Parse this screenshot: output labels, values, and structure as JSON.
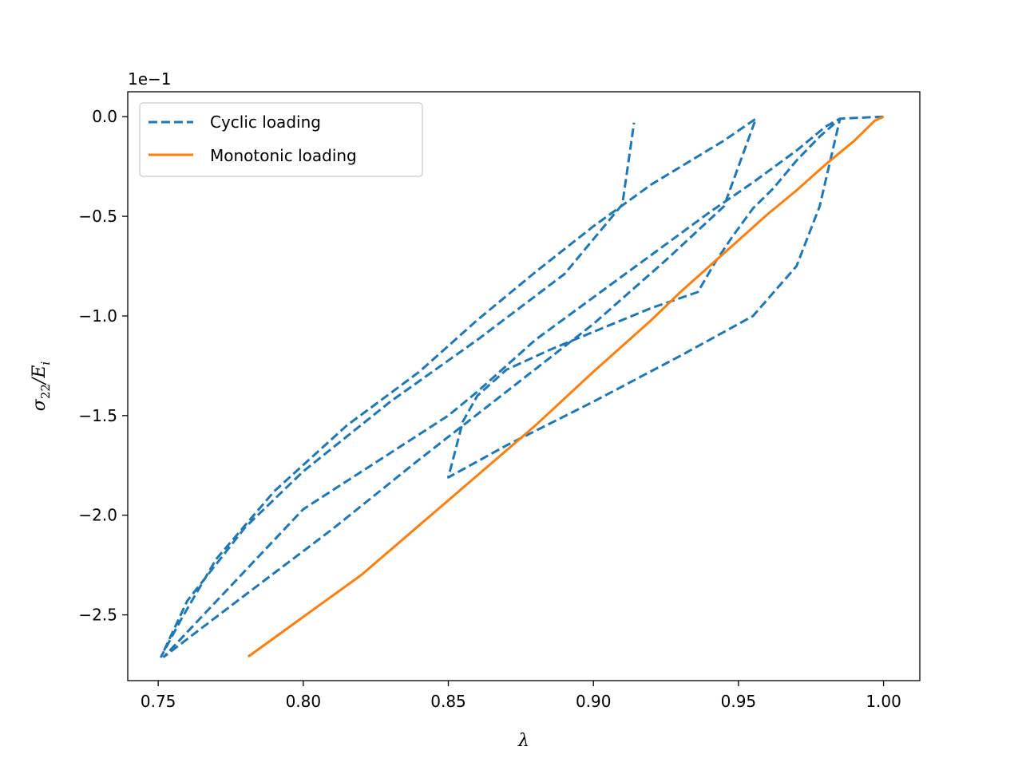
{
  "chart_data": {
    "type": "line",
    "xlabel": "λ",
    "ylabel_main": "σ",
    "ylabel_sub": "22",
    "ylabel_slash": "/E",
    "ylabel_sub2": "i",
    "y_offset_label": "1e−1",
    "xlim": [
      0.7395,
      1.0125
    ],
    "ylim": [
      -2.83,
      0.125
    ],
    "x_ticks": [
      0.75,
      0.8,
      0.85,
      0.9,
      0.95,
      1.0
    ],
    "x_tick_labels": [
      "0.75",
      "0.80",
      "0.85",
      "0.90",
      "0.95",
      "1.00"
    ],
    "y_ticks": [
      0.0,
      -0.5,
      -1.0,
      -1.5,
      -2.0,
      -2.5
    ],
    "y_tick_labels": [
      "0.0",
      "−0.5",
      "−1.0",
      "−1.5",
      "−2.0",
      "−2.5"
    ],
    "grid": false,
    "legend_position": "top-left",
    "series": [
      {
        "name": "Cyclic loading",
        "color": "#1f77b4",
        "style": "dashed",
        "points": [
          [
            1.0,
            0.0
          ],
          [
            0.985,
            -0.01
          ],
          [
            0.978,
            -0.1
          ],
          [
            0.97,
            -0.22
          ],
          [
            0.962,
            -0.36
          ],
          [
            0.955,
            -0.46
          ],
          [
            0.948,
            -0.6
          ],
          [
            0.942,
            -0.73
          ],
          [
            0.936,
            -0.88
          ],
          [
            0.92,
            -0.96
          ],
          [
            0.9,
            -1.08
          ],
          [
            0.885,
            -1.17
          ],
          [
            0.87,
            -1.27
          ],
          [
            0.86,
            -1.4
          ],
          [
            0.855,
            -1.53
          ],
          [
            0.85,
            -1.81
          ],
          [
            0.87,
            -1.65
          ],
          [
            0.9,
            -1.43
          ],
          [
            0.93,
            -1.2
          ],
          [
            0.955,
            -1.0
          ],
          [
            0.97,
            -0.75
          ],
          [
            0.978,
            -0.45
          ],
          [
            0.985,
            -0.01
          ],
          [
            0.98,
            -0.05
          ],
          [
            0.97,
            -0.17
          ],
          [
            0.955,
            -0.33
          ],
          [
            0.94,
            -0.48
          ],
          [
            0.925,
            -0.64
          ],
          [
            0.91,
            -0.8
          ],
          [
            0.895,
            -0.96
          ],
          [
            0.88,
            -1.12
          ],
          [
            0.87,
            -1.25
          ],
          [
            0.86,
            -1.38
          ],
          [
            0.85,
            -1.5
          ],
          [
            0.8,
            -1.97
          ],
          [
            0.752,
            -2.71
          ],
          [
            0.78,
            -2.4
          ],
          [
            0.81,
            -2.07
          ],
          [
            0.84,
            -1.72
          ],
          [
            0.87,
            -1.38
          ],
          [
            0.9,
            -1.04
          ],
          [
            0.925,
            -0.72
          ],
          [
            0.945,
            -0.45
          ],
          [
            0.956,
            -0.01
          ],
          [
            0.945,
            -0.12
          ],
          [
            0.92,
            -0.34
          ],
          [
            0.9,
            -0.55
          ],
          [
            0.88,
            -0.78
          ],
          [
            0.86,
            -1.02
          ],
          [
            0.84,
            -1.28
          ],
          [
            0.815,
            -1.55
          ],
          [
            0.79,
            -1.88
          ],
          [
            0.77,
            -2.22
          ],
          [
            0.758,
            -2.52
          ],
          [
            0.751,
            -2.71
          ],
          [
            0.76,
            -2.43
          ],
          [
            0.78,
            -2.06
          ],
          [
            0.8,
            -1.78
          ],
          [
            0.83,
            -1.43
          ],
          [
            0.86,
            -1.12
          ],
          [
            0.89,
            -0.79
          ],
          [
            0.91,
            -0.44
          ],
          [
            0.914,
            -0.03
          ]
        ]
      },
      {
        "name": "Monotonic loading",
        "color": "#ff7f0e",
        "style": "solid",
        "points": [
          [
            1.0,
            0.0
          ],
          [
            0.997,
            -0.02
          ],
          [
            0.99,
            -0.12
          ],
          [
            0.98,
            -0.24
          ],
          [
            0.97,
            -0.37
          ],
          [
            0.96,
            -0.49
          ],
          [
            0.95,
            -0.62
          ],
          [
            0.94,
            -0.75
          ],
          [
            0.93,
            -0.88
          ],
          [
            0.92,
            -1.02
          ],
          [
            0.9,
            -1.28
          ],
          [
            0.88,
            -1.55
          ],
          [
            0.86,
            -1.8
          ],
          [
            0.84,
            -2.05
          ],
          [
            0.82,
            -2.3
          ],
          [
            0.8,
            -2.51
          ],
          [
            0.781,
            -2.71
          ]
        ]
      }
    ]
  }
}
